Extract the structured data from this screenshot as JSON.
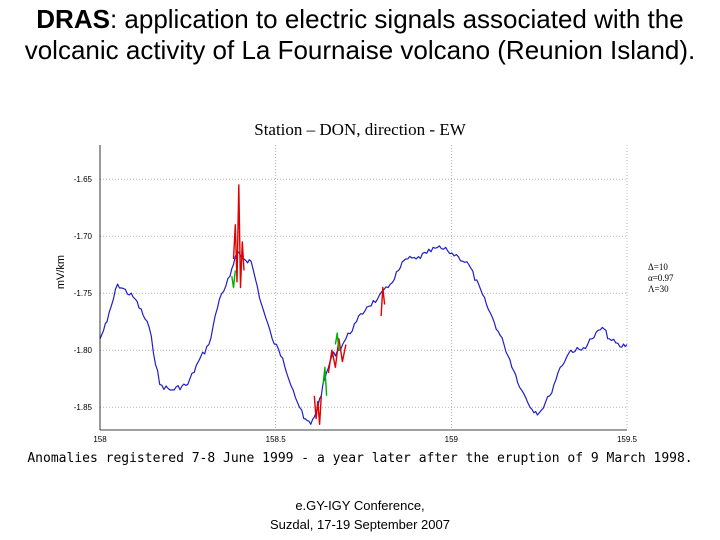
{
  "slide": {
    "title_bold": "DRAS",
    "title_rest": ": application to electric signals associated with the volcanic activity of La Fournaise volcano (Reunion Island).",
    "caption": "Anomalies registered 7-8 June 1999 - a year later after the eruption of 9 March 1998.",
    "footer_line1": "e.GY-IGY Conference,",
    "footer_line2": "Suzdal, 17-19 September 2007"
  },
  "colors": {
    "signal": "#1f1fc8",
    "anomaly_red": "#e00000",
    "anomaly_green": "#00b000",
    "axis": "#000000",
    "grid": "#888888"
  },
  "chart_data": {
    "type": "line",
    "title": "Station – DON, direction - EW",
    "xlabel": "",
    "ylabel": "mV/km",
    "xlim": [
      158,
      159.5
    ],
    "ylim": [
      -1.87,
      -1.62
    ],
    "y_inverted": true,
    "grid": true,
    "x_ticks": [
      158,
      158.5,
      159,
      159.5
    ],
    "x_tick_labels": [
      "158",
      "158.5",
      "159",
      "159.5"
    ],
    "y_ticks": [
      -1.65,
      -1.7,
      -1.75,
      -1.8,
      -1.85
    ],
    "y_tick_labels": [
      "-1.65",
      "-1.70",
      "-1.75",
      "-1.80",
      "-1.85"
    ],
    "annotations": [
      "Δ=10",
      "α=0.97",
      "Λ=30"
    ],
    "series": [
      {
        "color_key": "signal",
        "x": [
          158.0,
          158.02,
          158.05,
          158.1,
          158.14,
          158.17,
          158.2,
          158.25,
          158.28,
          158.31,
          158.34,
          158.37,
          158.39,
          158.41,
          158.43,
          158.46,
          158.49,
          158.52,
          158.55,
          158.58,
          158.6,
          158.62,
          158.64,
          158.66,
          158.68,
          158.7,
          158.73,
          158.76,
          158.79,
          158.82,
          158.85,
          158.87,
          158.9,
          158.93,
          158.96,
          158.99,
          159.02,
          159.05,
          159.1,
          159.15,
          159.2,
          159.23,
          159.25,
          159.28,
          159.31,
          159.34,
          159.37,
          159.4,
          159.43,
          159.45,
          159.48,
          159.5
        ],
        "y": [
          -1.79,
          -1.775,
          -1.742,
          -1.755,
          -1.78,
          -1.83,
          -1.835,
          -1.83,
          -1.81,
          -1.795,
          -1.755,
          -1.735,
          -1.715,
          -1.72,
          -1.722,
          -1.76,
          -1.79,
          -1.807,
          -1.835,
          -1.86,
          -1.865,
          -1.85,
          -1.825,
          -1.805,
          -1.8,
          -1.79,
          -1.775,
          -1.762,
          -1.755,
          -1.745,
          -1.73,
          -1.72,
          -1.72,
          -1.715,
          -1.71,
          -1.713,
          -1.718,
          -1.725,
          -1.76,
          -1.795,
          -1.835,
          -1.852,
          -1.855,
          -1.84,
          -1.815,
          -1.8,
          -1.8,
          -1.79,
          -1.78,
          -1.79,
          -1.797,
          -1.795
        ]
      },
      {
        "color_key": "anomaly_red",
        "x": [
          158.38,
          158.385,
          158.39,
          158.395,
          158.4,
          158.405,
          158.41
        ],
        "y": [
          -1.72,
          -1.69,
          -1.74,
          -1.655,
          -1.745,
          -1.705,
          -1.73
        ]
      },
      {
        "color_key": "anomaly_red",
        "x": [
          158.61,
          158.615,
          158.62,
          158.625,
          158.63
        ],
        "y": [
          -1.84,
          -1.86,
          -1.845,
          -1.865,
          -1.84
        ]
      },
      {
        "color_key": "anomaly_red",
        "x": [
          158.65,
          158.66,
          158.67,
          158.68,
          158.69,
          158.7
        ],
        "y": [
          -1.82,
          -1.8,
          -1.815,
          -1.79,
          -1.81,
          -1.795
        ]
      },
      {
        "color_key": "anomaly_red",
        "x": [
          158.8,
          158.805,
          158.81
        ],
        "y": [
          -1.77,
          -1.745,
          -1.76
        ]
      },
      {
        "color_key": "anomaly_green",
        "x": [
          158.375,
          158.38,
          158.385
        ],
        "y": [
          -1.735,
          -1.745,
          -1.73
        ]
      },
      {
        "color_key": "anomaly_green",
        "x": [
          158.635,
          158.64,
          158.645
        ],
        "y": [
          -1.83,
          -1.815,
          -1.84
        ]
      },
      {
        "color_key": "anomaly_green",
        "x": [
          158.67,
          158.675,
          158.68
        ],
        "y": [
          -1.795,
          -1.785,
          -1.8
        ]
      }
    ]
  }
}
